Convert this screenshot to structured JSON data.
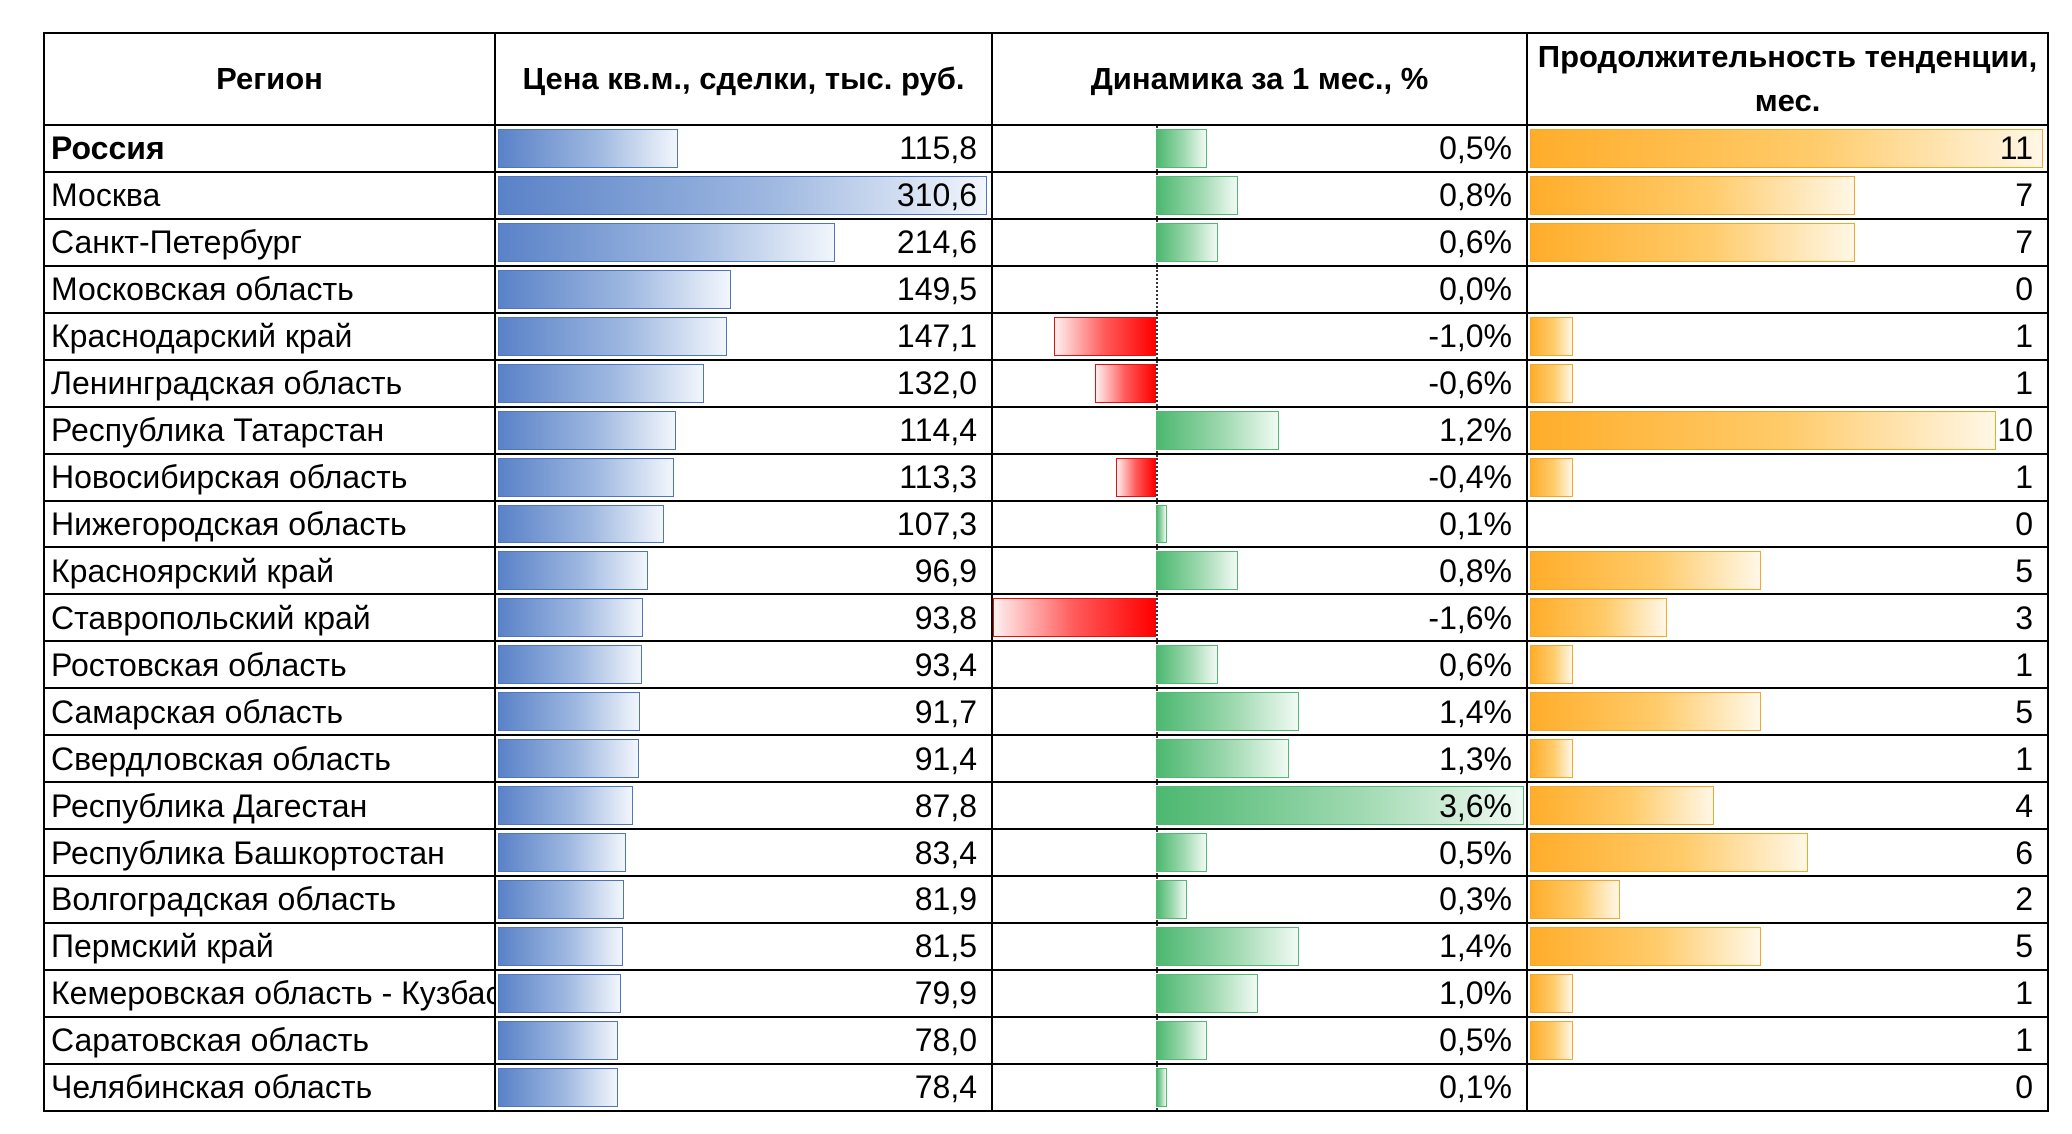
{
  "chart_data": {
    "type": "table",
    "columns": [
      "Регион",
      "Цена кв.м., сделки, тыс. руб.",
      "Динамика за 1 мес., %",
      "Продолжительность тенденции, мес."
    ],
    "rows": [
      {
        "region": "Россия",
        "price": 115.8,
        "price_label": "115,8",
        "change": 0.5,
        "change_label": "0,5%",
        "duration": 11,
        "bold": true
      },
      {
        "region": "Москва",
        "price": 310.6,
        "price_label": "310,6",
        "change": 0.8,
        "change_label": "0,8%",
        "duration": 7
      },
      {
        "region": "Санкт-Петербург",
        "price": 214.6,
        "price_label": "214,6",
        "change": 0.6,
        "change_label": "0,6%",
        "duration": 7
      },
      {
        "region": "Московская область",
        "price": 149.5,
        "price_label": "149,5",
        "change": 0.0,
        "change_label": "0,0%",
        "duration": 0
      },
      {
        "region": "Краснодарский край",
        "price": 147.1,
        "price_label": "147,1",
        "change": -1.0,
        "change_label": "-1,0%",
        "duration": 1
      },
      {
        "region": "Ленинградская область",
        "price": 132.0,
        "price_label": "132,0",
        "change": -0.6,
        "change_label": "-0,6%",
        "duration": 1
      },
      {
        "region": "Республика Татарстан",
        "price": 114.4,
        "price_label": "114,4",
        "change": 1.2,
        "change_label": "1,2%",
        "duration": 10
      },
      {
        "region": "Новосибирская область",
        "price": 113.3,
        "price_label": "113,3",
        "change": -0.4,
        "change_label": "-0,4%",
        "duration": 1
      },
      {
        "region": "Нижегородская область",
        "price": 107.3,
        "price_label": "107,3",
        "change": 0.1,
        "change_label": "0,1%",
        "duration": 0
      },
      {
        "region": "Красноярский край",
        "price": 96.9,
        "price_label": "96,9",
        "change": 0.8,
        "change_label": "0,8%",
        "duration": 5
      },
      {
        "region": "Ставропольский край",
        "price": 93.8,
        "price_label": "93,8",
        "change": -1.6,
        "change_label": "-1,6%",
        "duration": 3
      },
      {
        "region": "Ростовская область",
        "price": 93.4,
        "price_label": "93,4",
        "change": 0.6,
        "change_label": "0,6%",
        "duration": 1
      },
      {
        "region": "Самарская область",
        "price": 91.7,
        "price_label": "91,7",
        "change": 1.4,
        "change_label": "1,4%",
        "duration": 5
      },
      {
        "region": "Свердловская область",
        "price": 91.4,
        "price_label": "91,4",
        "change": 1.3,
        "change_label": "1,3%",
        "duration": 1
      },
      {
        "region": "Республика Дагестан",
        "price": 87.8,
        "price_label": "87,8",
        "change": 3.6,
        "change_label": "3,6%",
        "duration": 4
      },
      {
        "region": "Республика Башкортостан",
        "price": 83.4,
        "price_label": "83,4",
        "change": 0.5,
        "change_label": "0,5%",
        "duration": 6
      },
      {
        "region": "Волгоградская область",
        "price": 81.9,
        "price_label": "81,9",
        "change": 0.3,
        "change_label": "0,3%",
        "duration": 2
      },
      {
        "region": "Пермский край",
        "price": 81.5,
        "price_label": "81,5",
        "change": 1.4,
        "change_label": "1,4%",
        "duration": 5
      },
      {
        "region": "Кемеровская область - Кузбасс",
        "price": 79.9,
        "price_label": "79,9",
        "change": 1.0,
        "change_label": "1,0%",
        "duration": 1
      },
      {
        "region": "Саратовская область",
        "price": 78.0,
        "price_label": "78,0",
        "change": 0.5,
        "change_label": "0,5%",
        "duration": 1
      },
      {
        "region": "Челябинская область",
        "price": 78.4,
        "price_label": "78,4",
        "change": 0.1,
        "change_label": "0,1%",
        "duration": 0
      }
    ],
    "price_scale_max": 310.6,
    "change_scale": [
      -1.6,
      3.6
    ],
    "duration_scale_max": 11,
    "bar_colors": {
      "price": "#5a82c8",
      "change_positive": "#4cb870",
      "change_negative": "#ff0000",
      "duration": "#ffad2a"
    }
  }
}
